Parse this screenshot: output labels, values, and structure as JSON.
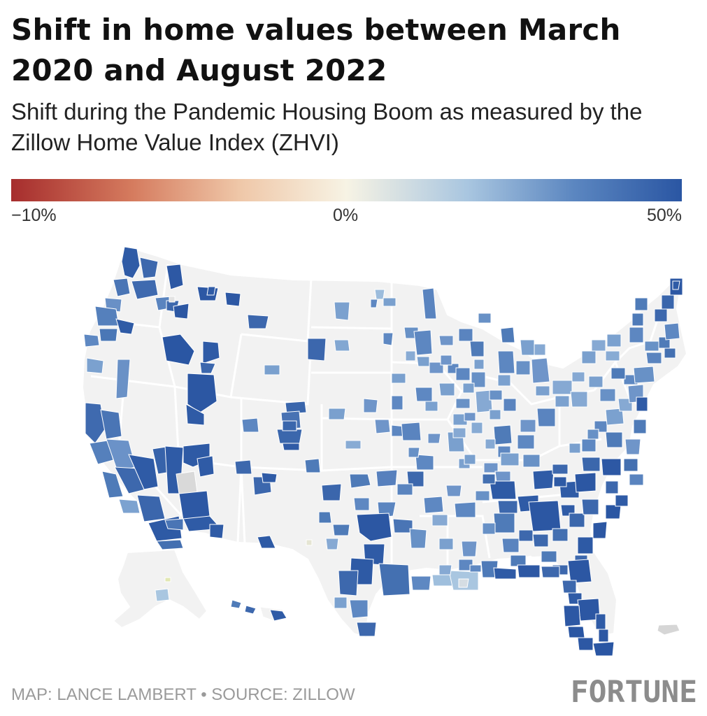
{
  "header": {
    "title": "Shift in home values between March 2020 and August 2022",
    "subtitle": "Shift during the Pandemic Housing Boom as measured by the Zillow Home Value Index (ZHVI)"
  },
  "legend": {
    "min_label": "−10%",
    "mid_label": "0%",
    "max_label": "50%",
    "scale_min": -10,
    "scale_mid": 0,
    "scale_max": 50,
    "color_low": "#a62d2d",
    "color_mid": "#f7f3e4",
    "color_high": "#2a56a3"
  },
  "map": {
    "base_color": "#f2f2f2",
    "border_color": "#ffffff",
    "unranked_color": "#d8d8d8"
  },
  "footer": {
    "credit": "MAP: LANCE LAMBERT • SOURCE: ZILLOW",
    "logo": "FORTUNE"
  }
}
